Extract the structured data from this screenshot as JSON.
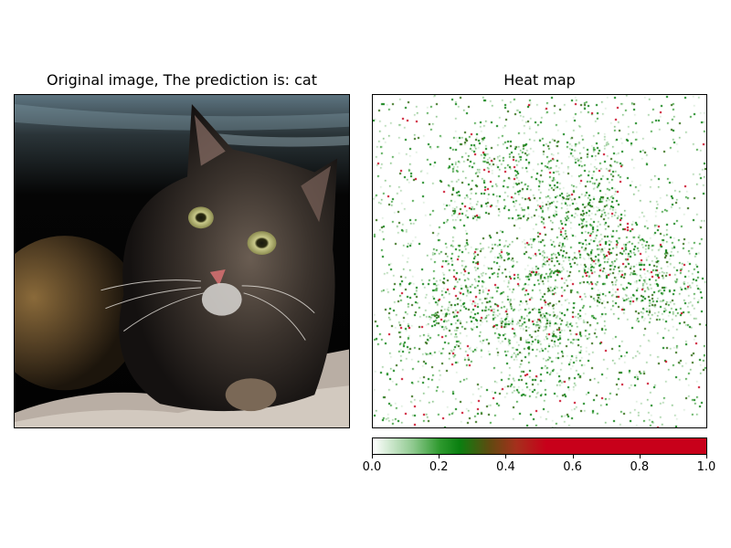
{
  "panels": {
    "left_title": "Original image, The prediction is: cat",
    "right_title": "Heat map"
  },
  "colorbar": {
    "ticks": [
      "0.0",
      "0.2",
      "0.4",
      "0.6",
      "0.8",
      "1.0"
    ],
    "range": [
      0.0,
      1.0
    ],
    "colormap_colors": [
      "#ffffff",
      "#0a7f10",
      "#c8001a"
    ]
  },
  "image_subject": "cat-photo"
}
